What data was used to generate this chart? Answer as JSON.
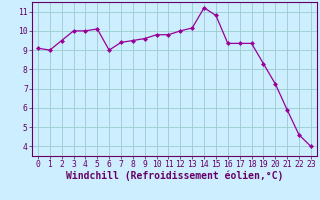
{
  "x": [
    0,
    1,
    2,
    3,
    4,
    5,
    6,
    7,
    8,
    9,
    10,
    11,
    12,
    13,
    14,
    15,
    16,
    17,
    18,
    19,
    20,
    21,
    22,
    23
  ],
  "y": [
    9.1,
    9.0,
    9.5,
    10.0,
    10.0,
    10.1,
    9.0,
    9.4,
    9.5,
    9.6,
    9.8,
    9.8,
    10.0,
    10.15,
    11.2,
    10.8,
    9.35,
    9.35,
    9.35,
    8.3,
    7.25,
    5.9,
    4.6,
    4.0
  ],
  "line_color": "#990099",
  "marker": "D",
  "marker_size": 2.0,
  "bg_color": "#cceeff",
  "grid_color": "#99cccc",
  "xlabel": "Windchill (Refroidissement éolien,°C)",
  "xlabel_color": "#660066",
  "xlabel_fontsize": 7.0,
  "ylabel_ticks": [
    4,
    5,
    6,
    7,
    8,
    9,
    10,
    11
  ],
  "xlim": [
    -0.5,
    23.5
  ],
  "ylim": [
    3.5,
    11.5
  ],
  "xtick_labels": [
    "0",
    "1",
    "2",
    "3",
    "4",
    "5",
    "6",
    "7",
    "8",
    "9",
    "10",
    "11",
    "12",
    "13",
    "14",
    "15",
    "16",
    "17",
    "18",
    "19",
    "20",
    "21",
    "22",
    "23"
  ],
  "tick_color": "#660066",
  "tick_fontsize": 5.8,
  "spine_color": "#660066",
  "line_width": 0.9
}
